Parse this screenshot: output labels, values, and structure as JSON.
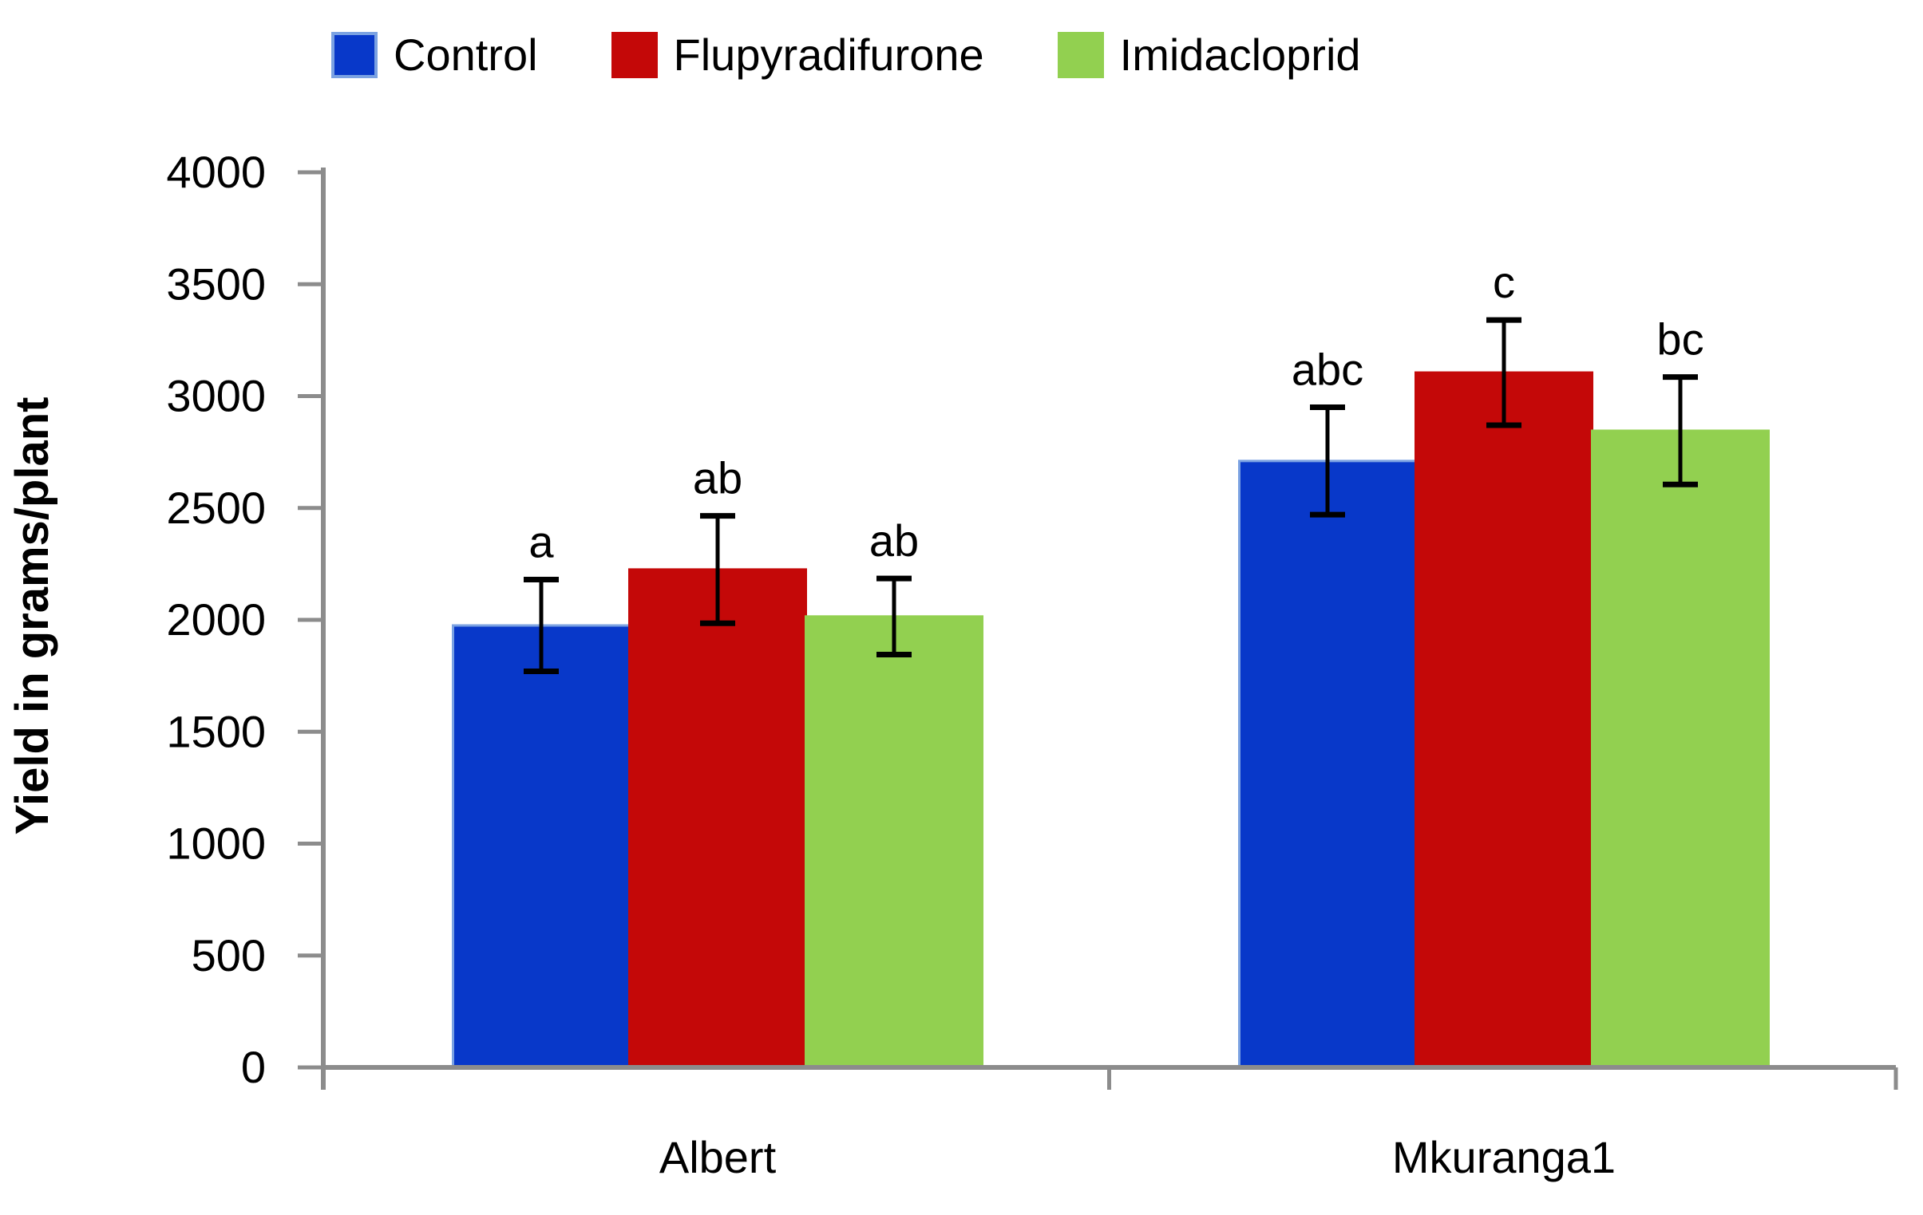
{
  "chart_data": {
    "type": "bar",
    "title": "",
    "ylabel": "Yield in grams/plant",
    "xlabel": "",
    "categories": [
      "Albert",
      "Mkuranga1"
    ],
    "series": [
      {
        "name": "Control",
        "color": "#0838C9",
        "border_color": "#7BA2E2",
        "values": [
          1975,
          2710
        ],
        "errors": [
          205,
          240
        ],
        "sig_letters": [
          "a",
          "abc"
        ]
      },
      {
        "name": "Flupyradifurone",
        "color": "#C40808",
        "border_color": "#C40808",
        "values": [
          2225,
          3105
        ],
        "errors": [
          240,
          235
        ],
        "sig_letters": [
          "ab",
          "c"
        ]
      },
      {
        "name": "Imidacloprid",
        "color": "#92D050",
        "border_color": "#92D050",
        "values": [
          2015,
          2845
        ],
        "errors": [
          170,
          240
        ],
        "sig_letters": [
          "ab",
          "bc"
        ]
      }
    ],
    "ylim": [
      0,
      4000
    ],
    "ytick_step": 500,
    "yticks": [
      0,
      500,
      1000,
      1500,
      2000,
      2500,
      3000,
      3500,
      4000
    ],
    "grid": false,
    "legend_position": "top",
    "error_bars": true,
    "annotation_note": "significance letters above error bars"
  },
  "colors": {
    "axis": "#8C8C8C",
    "text": "#000000",
    "background": "#FFFFFF"
  }
}
